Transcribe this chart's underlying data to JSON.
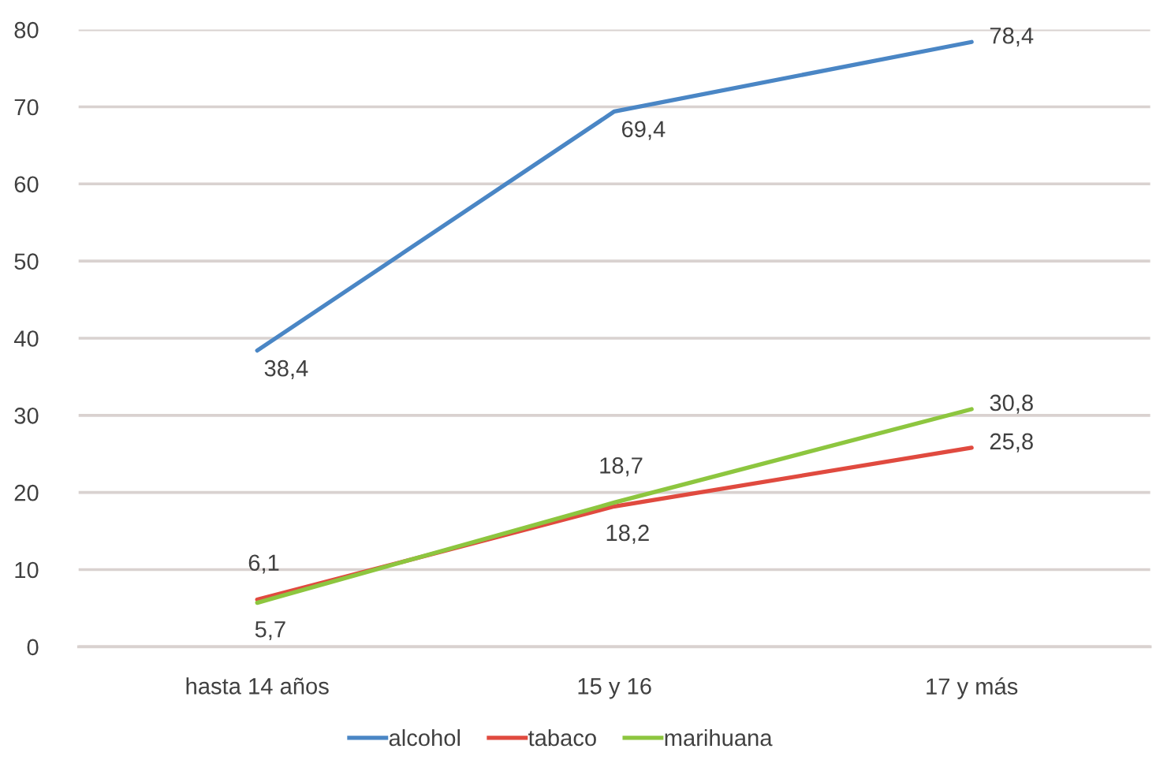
{
  "chart_data": {
    "type": "line",
    "categories": [
      "hasta 14 años",
      "15 y 16",
      "17 y más"
    ],
    "series": [
      {
        "name": "alcohol",
        "color": "#4a86c5",
        "values": [
          38.4,
          69.4,
          78.4
        ],
        "value_labels": [
          "38,4",
          "69,4",
          "78,4"
        ]
      },
      {
        "name": "tabaco",
        "color": "#e04a3f",
        "values": [
          6.1,
          18.2,
          25.8
        ],
        "value_labels": [
          "6,1",
          "18,2",
          "25,8"
        ]
      },
      {
        "name": "marihuana",
        "color": "#8dc63f",
        "values": [
          5.7,
          18.7,
          30.8
        ],
        "value_labels": [
          "5,7",
          "18,7",
          "30,8"
        ]
      }
    ],
    "ylim": [
      0,
      80
    ],
    "yticks": [
      0,
      10,
      20,
      30,
      40,
      50,
      60,
      70,
      80
    ],
    "grid": "y",
    "legend": "bottom",
    "marker": "none",
    "line_style": "solid"
  }
}
